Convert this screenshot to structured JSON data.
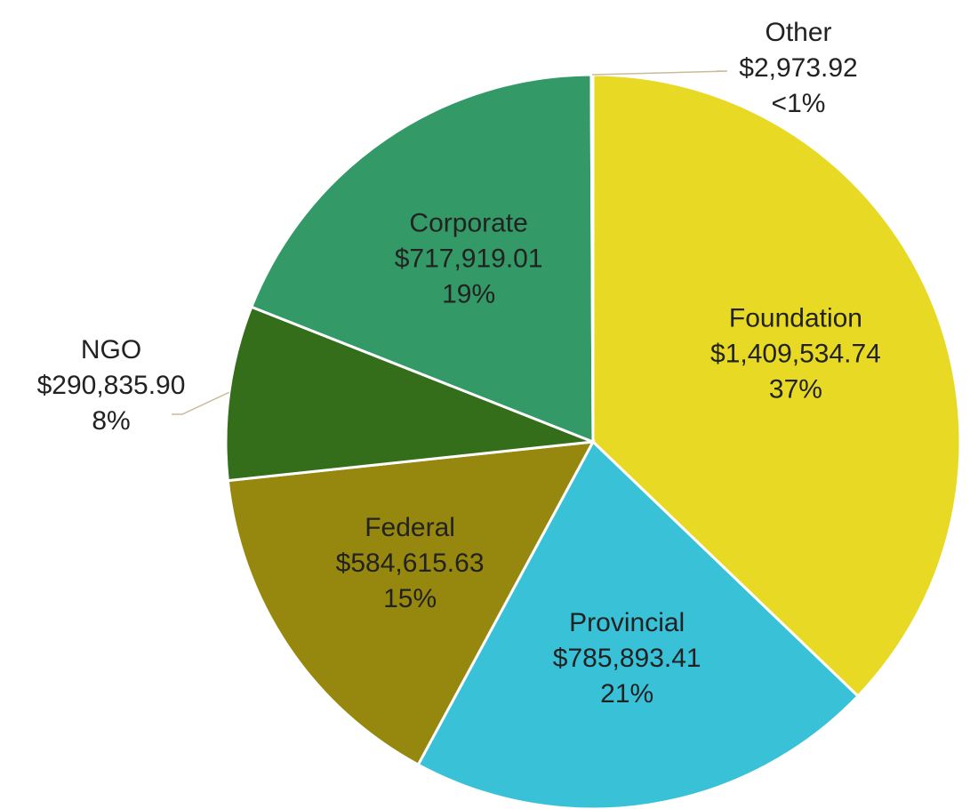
{
  "chart_data": {
    "type": "pie",
    "categories": [
      "Foundation",
      "Provincial",
      "Federal",
      "NGO",
      "Corporate",
      "Other"
    ],
    "values": [
      1409534.74,
      785893.41,
      584615.63,
      290835.9,
      717919.01,
      2973.92
    ],
    "value_labels": [
      "$1,409,534.74",
      "$785,893.41",
      "$584,615.63",
      "$290,835.90",
      "$717,919.01",
      "$2,973.92"
    ],
    "percent_labels": [
      "37%",
      "21%",
      "15%",
      "8%",
      "19%",
      "<1%"
    ],
    "colors": [
      "#e8da24",
      "#39c1d8",
      "#96880f",
      "#356e1a",
      "#339966",
      "#d8c89c"
    ]
  }
}
